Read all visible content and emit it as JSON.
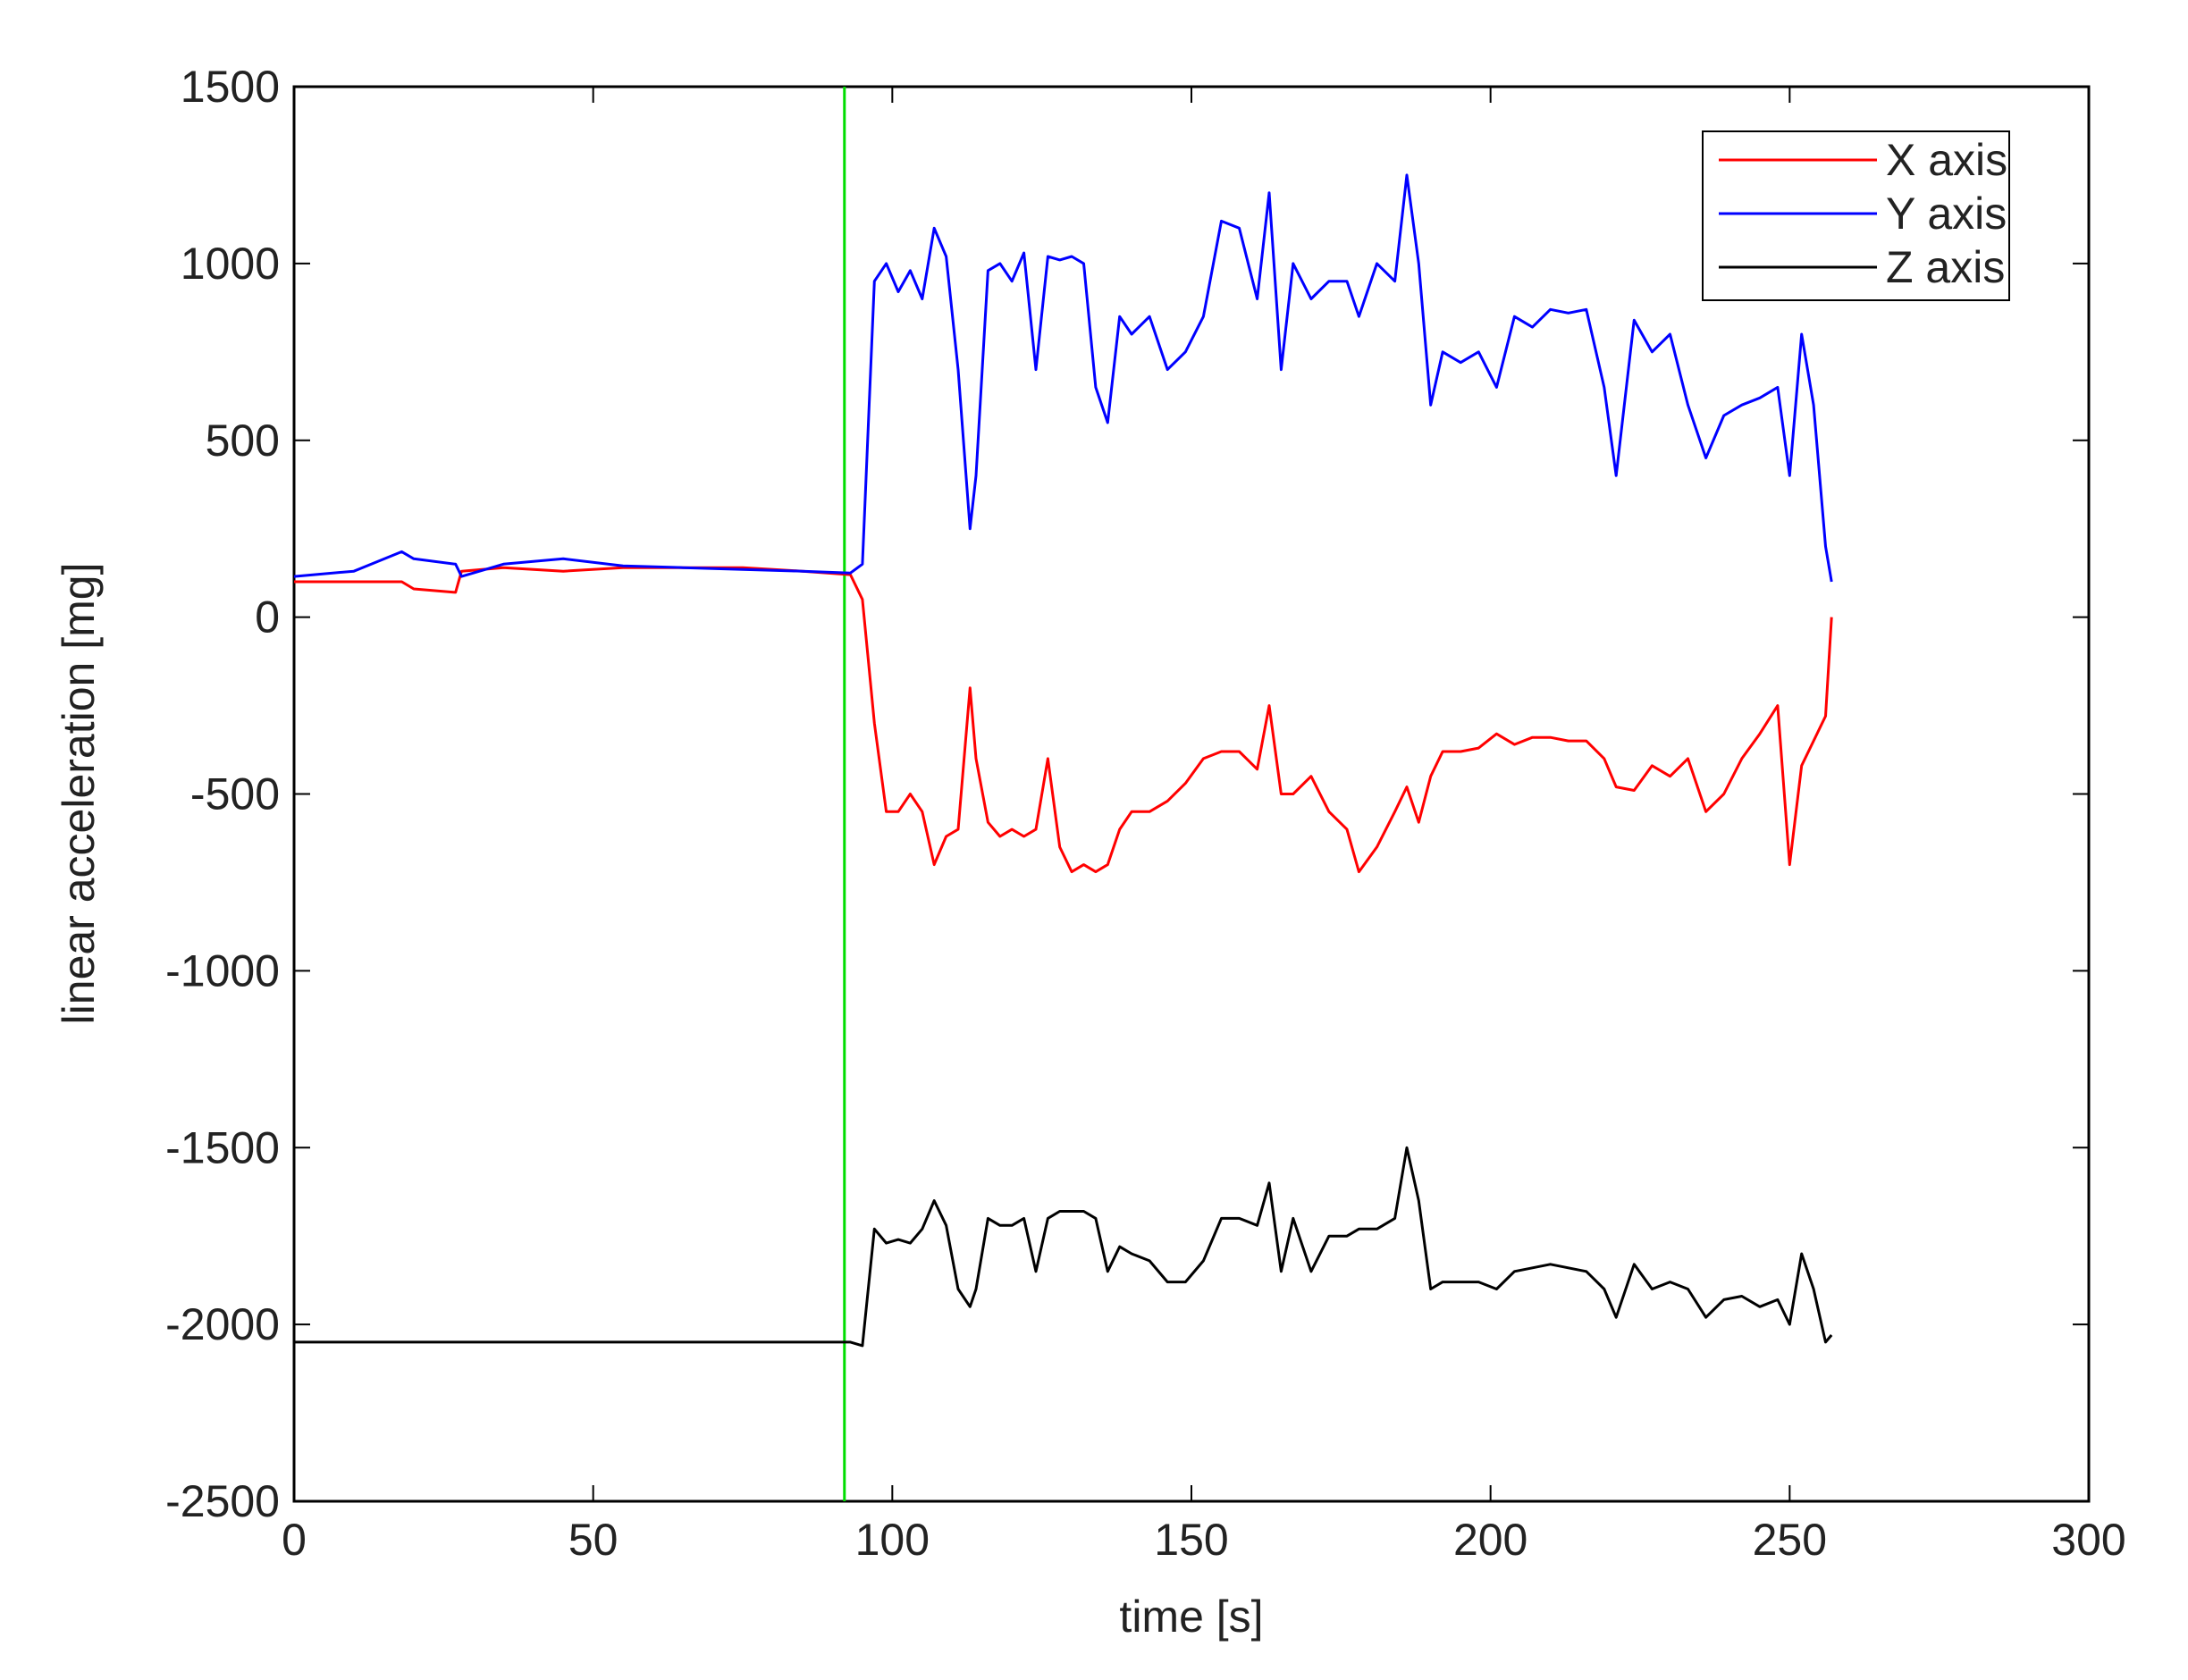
{
  "chart_data": {
    "type": "line",
    "xlabel": "time [s]",
    "ylabel": "linear acceleration [mg]",
    "xlim": [
      0,
      300
    ],
    "xticks": [
      0,
      50,
      100,
      150,
      200,
      250,
      300
    ],
    "ylim": [
      -2500,
      1500
    ],
    "yticks": [
      -2500,
      -2000,
      -1500,
      -1000,
      -500,
      0,
      500,
      1000,
      1500
    ],
    "grid": false,
    "legend": "upper right",
    "reference_lines": [
      {
        "x": 92,
        "color": "#00dd00"
      }
    ],
    "x": [
      0,
      10,
      18,
      20,
      27,
      28,
      35,
      45,
      55,
      65,
      75,
      85,
      93,
      95,
      97,
      99,
      101,
      103,
      105,
      107,
      109,
      111,
      113,
      114,
      116,
      118,
      120,
      122,
      124,
      126,
      128,
      130,
      132,
      134,
      136,
      138,
      140,
      143,
      146,
      149,
      152,
      155,
      158,
      161,
      163,
      165,
      167,
      170,
      173,
      176,
      178,
      181,
      184,
      186,
      188,
      190,
      192,
      195,
      198,
      201,
      204,
      207,
      210,
      213,
      216,
      219,
      221,
      224,
      227,
      230,
      233,
      236,
      239,
      242,
      245,
      248,
      250,
      252,
      254,
      256,
      257
    ],
    "series": [
      {
        "name": "X axis",
        "color": "#ff0000",
        "values": [
          100,
          100,
          100,
          80,
          70,
          130,
          140,
          130,
          140,
          140,
          140,
          130,
          120,
          50,
          -300,
          -550,
          -550,
          -500,
          -550,
          -700,
          -620,
          -600,
          -200,
          -400,
          -580,
          -620,
          -600,
          -620,
          -600,
          -400,
          -650,
          -720,
          -700,
          -720,
          -700,
          -600,
          -550,
          -550,
          -520,
          -470,
          -400,
          -380,
          -380,
          -430,
          -250,
          -500,
          -500,
          -450,
          -550,
          -600,
          -720,
          -650,
          -550,
          -480,
          -580,
          -450,
          -380,
          -380,
          -370,
          -330,
          -360,
          -340,
          -340,
          -350,
          -350,
          -400,
          -480,
          -490,
          -420,
          -450,
          -400,
          -550,
          -500,
          -400,
          -330,
          -250,
          -700,
          -420,
          -350,
          -280,
          0
        ]
      },
      {
        "name": "Y axis",
        "color": "#0000ff",
        "values": [
          115,
          130,
          185,
          165,
          150,
          115,
          150,
          165,
          145,
          140,
          135,
          130,
          125,
          150,
          950,
          1000,
          920,
          980,
          900,
          1100,
          1020,
          700,
          250,
          400,
          980,
          1000,
          950,
          1030,
          700,
          1020,
          1010,
          1020,
          1000,
          650,
          550,
          850,
          800,
          850,
          700,
          750,
          850,
          1120,
          1100,
          900,
          1200,
          700,
          1000,
          900,
          950,
          950,
          850,
          1000,
          950,
          1250,
          1000,
          600,
          750,
          720,
          750,
          650,
          850,
          820,
          870,
          860,
          870,
          650,
          400,
          840,
          750,
          800,
          600,
          450,
          570,
          600,
          620,
          650,
          400,
          800,
          600,
          200,
          100
        ]
      },
      {
        "name": "Z axis",
        "color": "#000000",
        "values": [
          -2050,
          -2050,
          -2050,
          -2050,
          -2050,
          -2050,
          -2050,
          -2050,
          -2050,
          -2050,
          -2050,
          -2050,
          -2050,
          -2060,
          -1730,
          -1770,
          -1760,
          -1770,
          -1730,
          -1650,
          -1720,
          -1900,
          -1950,
          -1900,
          -1700,
          -1720,
          -1720,
          -1700,
          -1850,
          -1700,
          -1680,
          -1680,
          -1680,
          -1700,
          -1850,
          -1780,
          -1800,
          -1820,
          -1880,
          -1880,
          -1820,
          -1700,
          -1700,
          -1720,
          -1600,
          -1850,
          -1700,
          -1850,
          -1750,
          -1750,
          -1730,
          -1730,
          -1700,
          -1500,
          -1650,
          -1900,
          -1880,
          -1880,
          -1880,
          -1900,
          -1850,
          -1840,
          -1830,
          -1840,
          -1850,
          -1900,
          -1980,
          -1830,
          -1900,
          -1880,
          -1900,
          -1980,
          -1930,
          -1920,
          -1950,
          -1930,
          -2000,
          -1800,
          -1900,
          -2050,
          -2030
        ]
      }
    ]
  }
}
